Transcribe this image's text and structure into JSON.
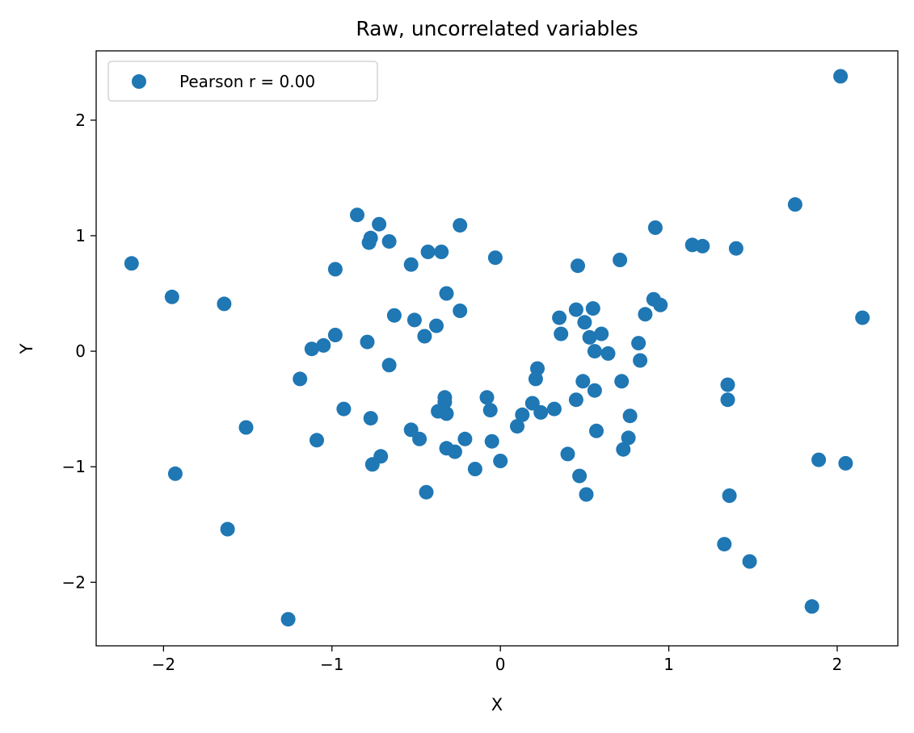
{
  "chart_data": {
    "type": "scatter",
    "title": "Raw, uncorrelated variables",
    "xlabel": "X",
    "ylabel": "Y",
    "xlim": [
      -2.4,
      2.36
    ],
    "ylim": [
      -2.55,
      2.6
    ],
    "x_ticks": [
      -2,
      -1,
      0,
      1,
      2
    ],
    "y_ticks": [
      -2,
      -1,
      0,
      1,
      2
    ],
    "x_tick_labels": [
      "−2",
      "−1",
      "0",
      "1",
      "2"
    ],
    "y_tick_labels": [
      "−2",
      "−1",
      "0",
      "1",
      "2"
    ],
    "grid": false,
    "legend": {
      "position": "top-left"
    },
    "series": [
      {
        "name": "Pearson r = 0.00",
        "color": "#1f77b4",
        "points": [
          [
            -2.19,
            0.76
          ],
          [
            -1.95,
            0.47
          ],
          [
            -1.93,
            -1.06
          ],
          [
            -1.64,
            0.41
          ],
          [
            -1.62,
            -1.54
          ],
          [
            -1.51,
            -0.66
          ],
          [
            -1.26,
            -2.32
          ],
          [
            -1.19,
            -0.24
          ],
          [
            -1.12,
            0.02
          ],
          [
            -1.09,
            -0.77
          ],
          [
            -1.05,
            0.05
          ],
          [
            -0.98,
            0.71
          ],
          [
            -0.98,
            0.14
          ],
          [
            -0.93,
            -0.5
          ],
          [
            -0.85,
            1.18
          ],
          [
            -0.79,
            0.08
          ],
          [
            -0.78,
            0.94
          ],
          [
            -0.77,
            0.98
          ],
          [
            -0.77,
            -0.58
          ],
          [
            -0.76,
            -0.98
          ],
          [
            -0.72,
            1.1
          ],
          [
            -0.71,
            -0.91
          ],
          [
            -0.66,
            0.95
          ],
          [
            -0.66,
            -0.12
          ],
          [
            -0.63,
            0.31
          ],
          [
            -0.53,
            0.75
          ],
          [
            -0.53,
            -0.68
          ],
          [
            -0.51,
            0.27
          ],
          [
            -0.48,
            -0.76
          ],
          [
            -0.45,
            0.13
          ],
          [
            -0.43,
            0.86
          ],
          [
            -0.44,
            -1.22
          ],
          [
            -0.38,
            0.22
          ],
          [
            -0.37,
            -0.52
          ],
          [
            -0.35,
            0.86
          ],
          [
            -0.33,
            -0.4
          ],
          [
            -0.33,
            -0.44
          ],
          [
            -0.32,
            0.5
          ],
          [
            -0.32,
            -0.54
          ],
          [
            -0.32,
            -0.84
          ],
          [
            -0.27,
            -0.87
          ],
          [
            -0.24,
            1.09
          ],
          [
            -0.24,
            0.35
          ],
          [
            -0.21,
            -0.76
          ],
          [
            -0.15,
            -1.02
          ],
          [
            -0.08,
            -0.4
          ],
          [
            -0.06,
            -0.51
          ],
          [
            -0.05,
            -0.78
          ],
          [
            -0.03,
            0.81
          ],
          [
            0.0,
            -0.95
          ],
          [
            0.1,
            -0.65
          ],
          [
            0.13,
            -0.55
          ],
          [
            0.19,
            -0.45
          ],
          [
            0.21,
            -0.24
          ],
          [
            0.22,
            -0.15
          ],
          [
            0.24,
            -0.53
          ],
          [
            0.32,
            -0.5
          ],
          [
            0.35,
            0.29
          ],
          [
            0.36,
            0.15
          ],
          [
            0.4,
            -0.89
          ],
          [
            0.45,
            0.36
          ],
          [
            0.45,
            -0.42
          ],
          [
            0.46,
            0.74
          ],
          [
            0.47,
            -1.08
          ],
          [
            0.49,
            -0.26
          ],
          [
            0.5,
            0.25
          ],
          [
            0.51,
            -1.24
          ],
          [
            0.53,
            0.12
          ],
          [
            0.55,
            0.37
          ],
          [
            0.56,
            0.0
          ],
          [
            0.56,
            -0.34
          ],
          [
            0.57,
            -0.69
          ],
          [
            0.6,
            0.15
          ],
          [
            0.64,
            -0.02
          ],
          [
            0.71,
            0.79
          ],
          [
            0.72,
            -0.26
          ],
          [
            0.73,
            -0.85
          ],
          [
            0.76,
            -0.75
          ],
          [
            0.77,
            -0.56
          ],
          [
            0.82,
            0.07
          ],
          [
            0.83,
            -0.08
          ],
          [
            0.86,
            0.32
          ],
          [
            0.91,
            0.45
          ],
          [
            0.92,
            1.07
          ],
          [
            0.95,
            0.4
          ],
          [
            1.14,
            0.92
          ],
          [
            1.2,
            0.91
          ],
          [
            1.33,
            -1.67
          ],
          [
            1.35,
            -0.29
          ],
          [
            1.35,
            -0.42
          ],
          [
            1.36,
            -1.25
          ],
          [
            1.4,
            0.89
          ],
          [
            1.48,
            -1.82
          ],
          [
            1.75,
            1.27
          ],
          [
            1.85,
            -2.21
          ],
          [
            1.89,
            -0.94
          ],
          [
            2.02,
            2.38
          ],
          [
            2.05,
            -0.97
          ],
          [
            2.15,
            0.29
          ]
        ]
      }
    ]
  }
}
